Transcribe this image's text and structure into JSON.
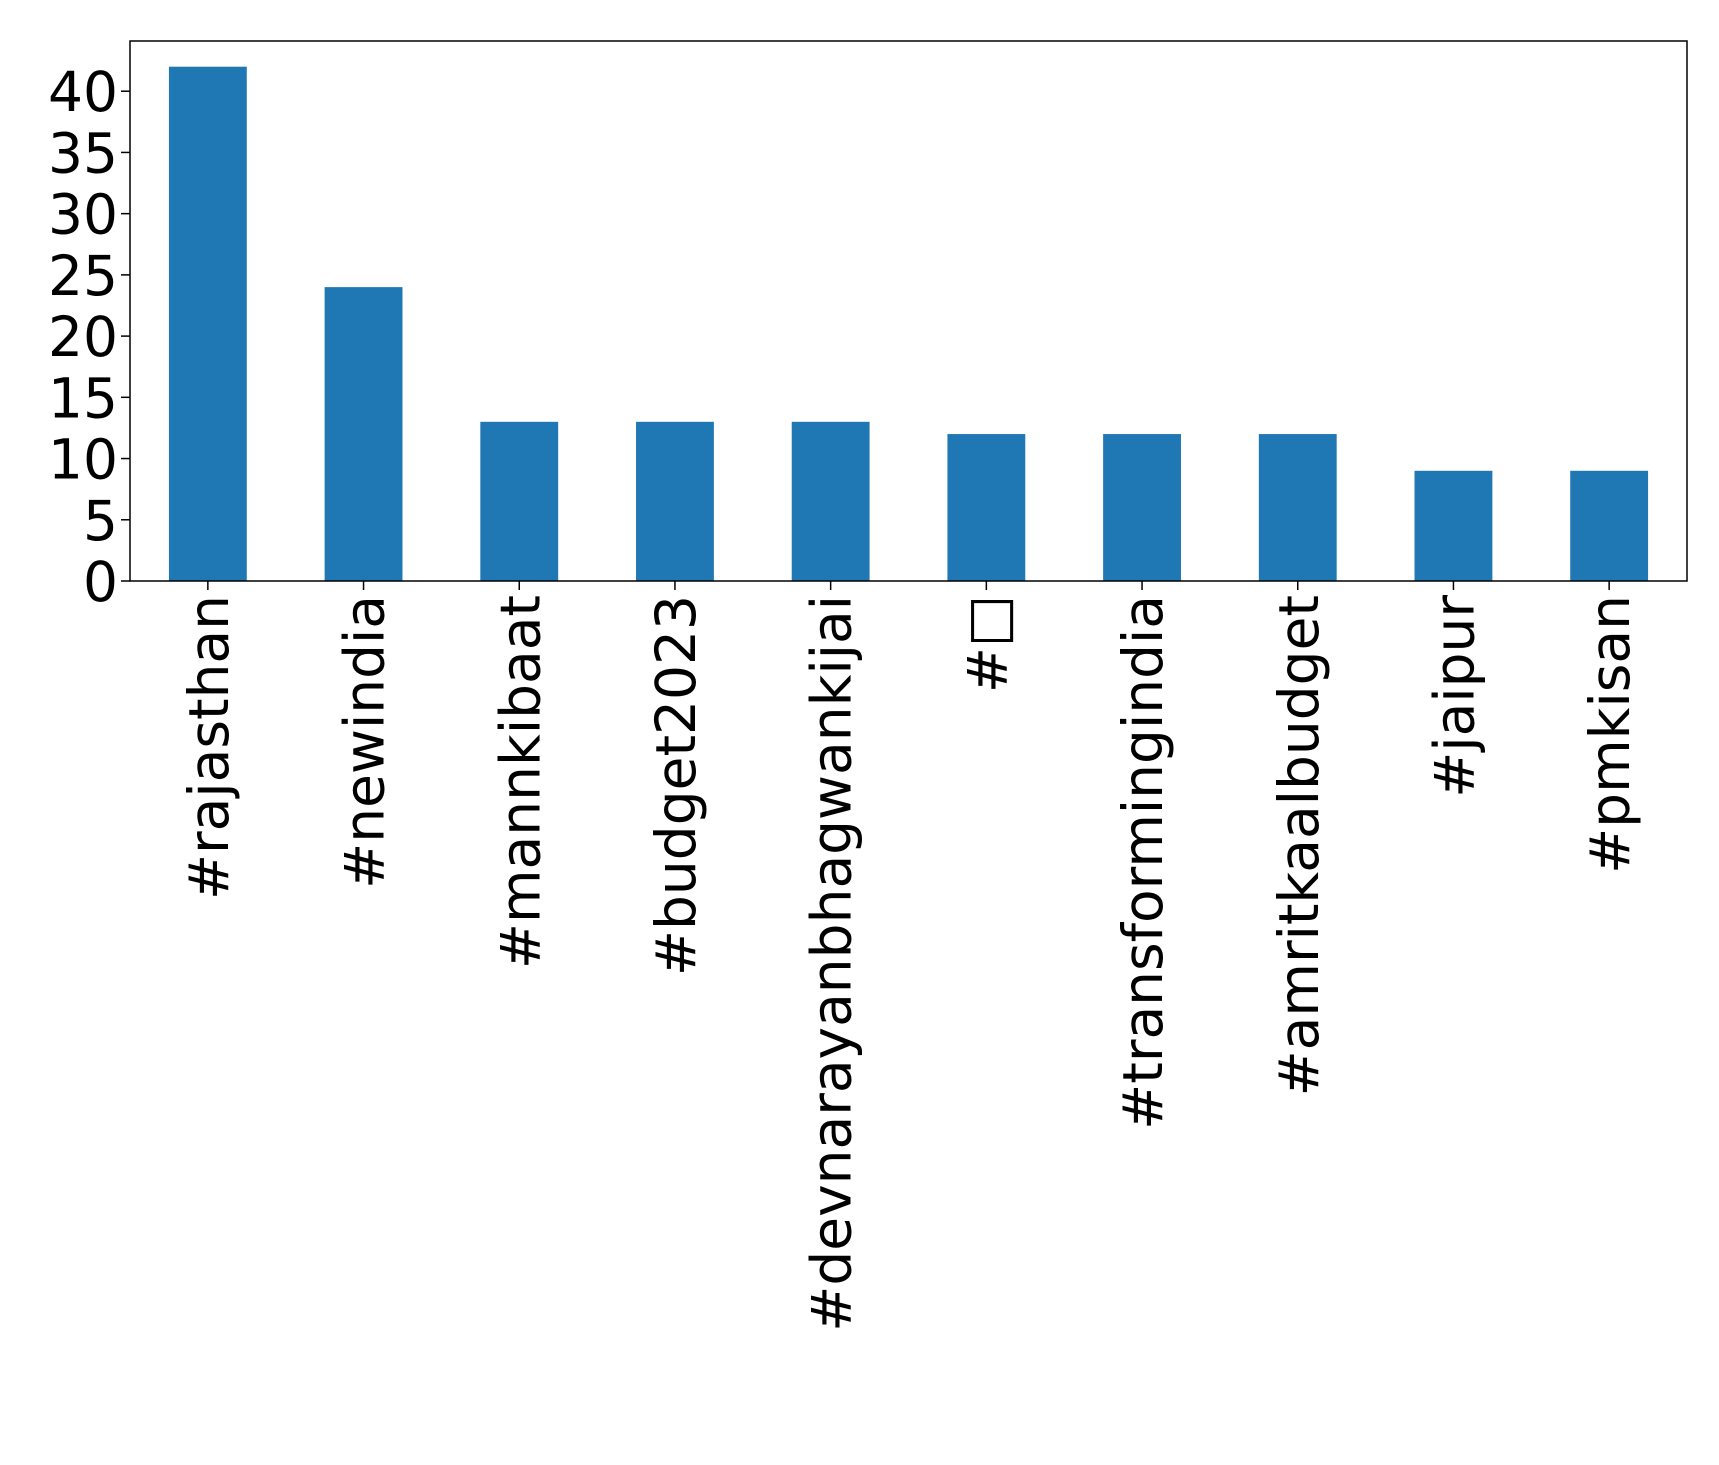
{
  "chart_data": {
    "type": "bar",
    "categories": [
      "#rajasthan",
      "#newindia",
      "#mannkibaat",
      "#budget2023",
      "#devnarayanbhagwankijai",
      "#□",
      "#transformingindia",
      "#amritkaalbudget",
      "#jaipur",
      "#pmkisan"
    ],
    "values": [
      42,
      24,
      13,
      13,
      13,
      12,
      12,
      12,
      9,
      9
    ],
    "color": "#1f77b4",
    "ylim": [
      0,
      44.1
    ],
    "yticks": [
      0,
      5,
      10,
      15,
      20,
      25,
      30,
      35,
      40
    ],
    "grid": false
  }
}
